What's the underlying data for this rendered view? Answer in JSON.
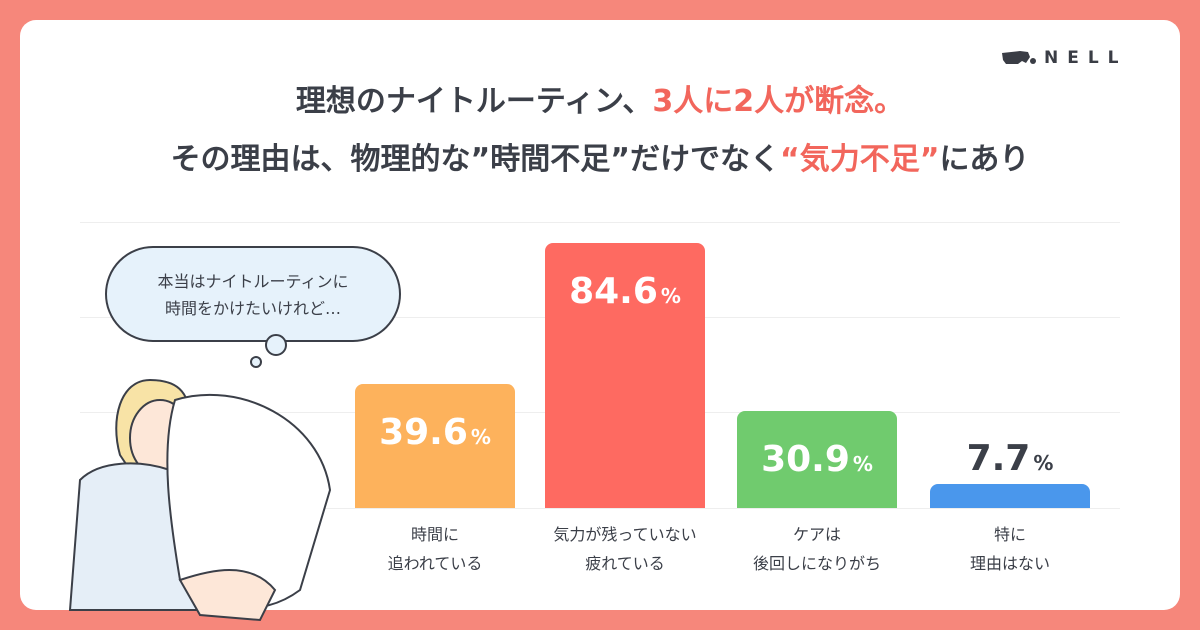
{
  "brand": "NELL",
  "title": {
    "line1_a": "理想のナイトルーティン、",
    "line1_hl": "3人に2人が断念。",
    "line2_a": "その理由は、物理的な”時間不足”だけでなく",
    "line2_hl": "“気力不足”",
    "line2_b": "にあり"
  },
  "bubble": {
    "line1": "本当はナイトルーティンに",
    "line2": "時間をかけたいけれど…"
  },
  "chart_data": {
    "type": "bar",
    "categories": [
      [
        "時間に",
        "追われている"
      ],
      [
        "気力が残っていない",
        "疲れている"
      ],
      [
        "ケアは",
        "後回しになりがち"
      ],
      [
        "特に",
        "理由はない"
      ]
    ],
    "values": [
      39.6,
      84.6,
      30.9,
      7.7
    ],
    "value_labels": [
      "39.6",
      "84.6",
      "30.9",
      "7.7"
    ],
    "unit": "%",
    "colors": [
      "#fdb25c",
      "#fe6a61",
      "#70cb6e",
      "#4a97ec"
    ],
    "ylim": [
      0,
      90
    ],
    "grid": true
  }
}
